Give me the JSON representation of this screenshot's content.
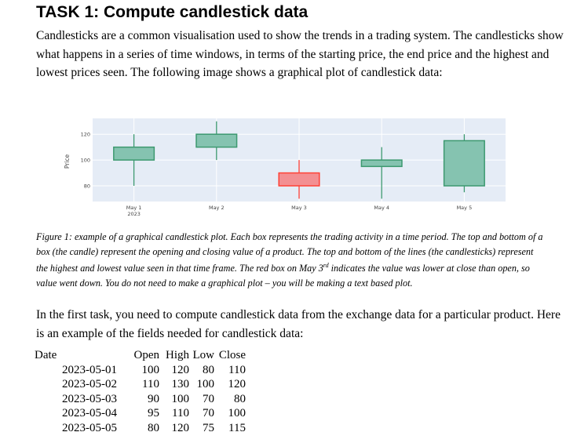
{
  "heading": "TASK 1: Compute candlestick data",
  "intro": "Candlesticks are a common visualisation used to show the trends in a trading system. The candlesticks show what happens in a series of time windows, in terms of the starting price, the end price and the highest and lowest prices seen. The following image shows a graphical plot of candlestick data:",
  "chart_data": {
    "type": "candlestick",
    "ylabel": "Price",
    "yticks": [
      80,
      100,
      120
    ],
    "ylim": [
      60,
      130
    ],
    "categories": [
      "May 1",
      "May 2",
      "May 3",
      "May 4",
      "May 5"
    ],
    "year_label": "2023",
    "open": [
      100,
      110,
      90,
      95,
      80
    ],
    "high": [
      120,
      130,
      100,
      110,
      120
    ],
    "low": [
      80,
      100,
      70,
      70,
      75
    ],
    "close": [
      110,
      120,
      80,
      100,
      115
    ],
    "colors": {
      "increasing": "#3d9970",
      "increasing_fill": "#85c3b0",
      "decreasing": "#ff4136",
      "decreasing_fill": "#f38f92",
      "plot_bg": "#e5ecf6"
    }
  },
  "caption": {
    "part1": "Figure 1: example of a graphical candlestick plot. Each box represents the trading activity in a time period. The top and bottom of a box (the candle) represent the opening and closing value of a product. The top and bottom of the lines (the candlesticks) represent the highest and lowest value seen in that time frame. The red box on May 3",
    "superscript": "rd",
    "part2": " indicates the value was lower at close than open, so value went down. You do not need to make a graphical plot – you will be making a text based plot."
  },
  "task_text": "In the first task, you need to compute candlestick data from the exchange data for a particular product. Here is an example of the fields needed for candlestick data:",
  "table": {
    "headers": [
      "Date",
      "Open",
      "High",
      "Low",
      "Close"
    ],
    "rows": [
      [
        "2023-05-01",
        "100",
        "120",
        "80",
        "110"
      ],
      [
        "2023-05-02",
        "110",
        "130",
        "100",
        "120"
      ],
      [
        "2023-05-03",
        "90",
        "100",
        "70",
        "80"
      ],
      [
        "2023-05-04",
        "95",
        "110",
        "70",
        "100"
      ],
      [
        "2023-05-05",
        "80",
        "120",
        "75",
        "115"
      ]
    ]
  }
}
